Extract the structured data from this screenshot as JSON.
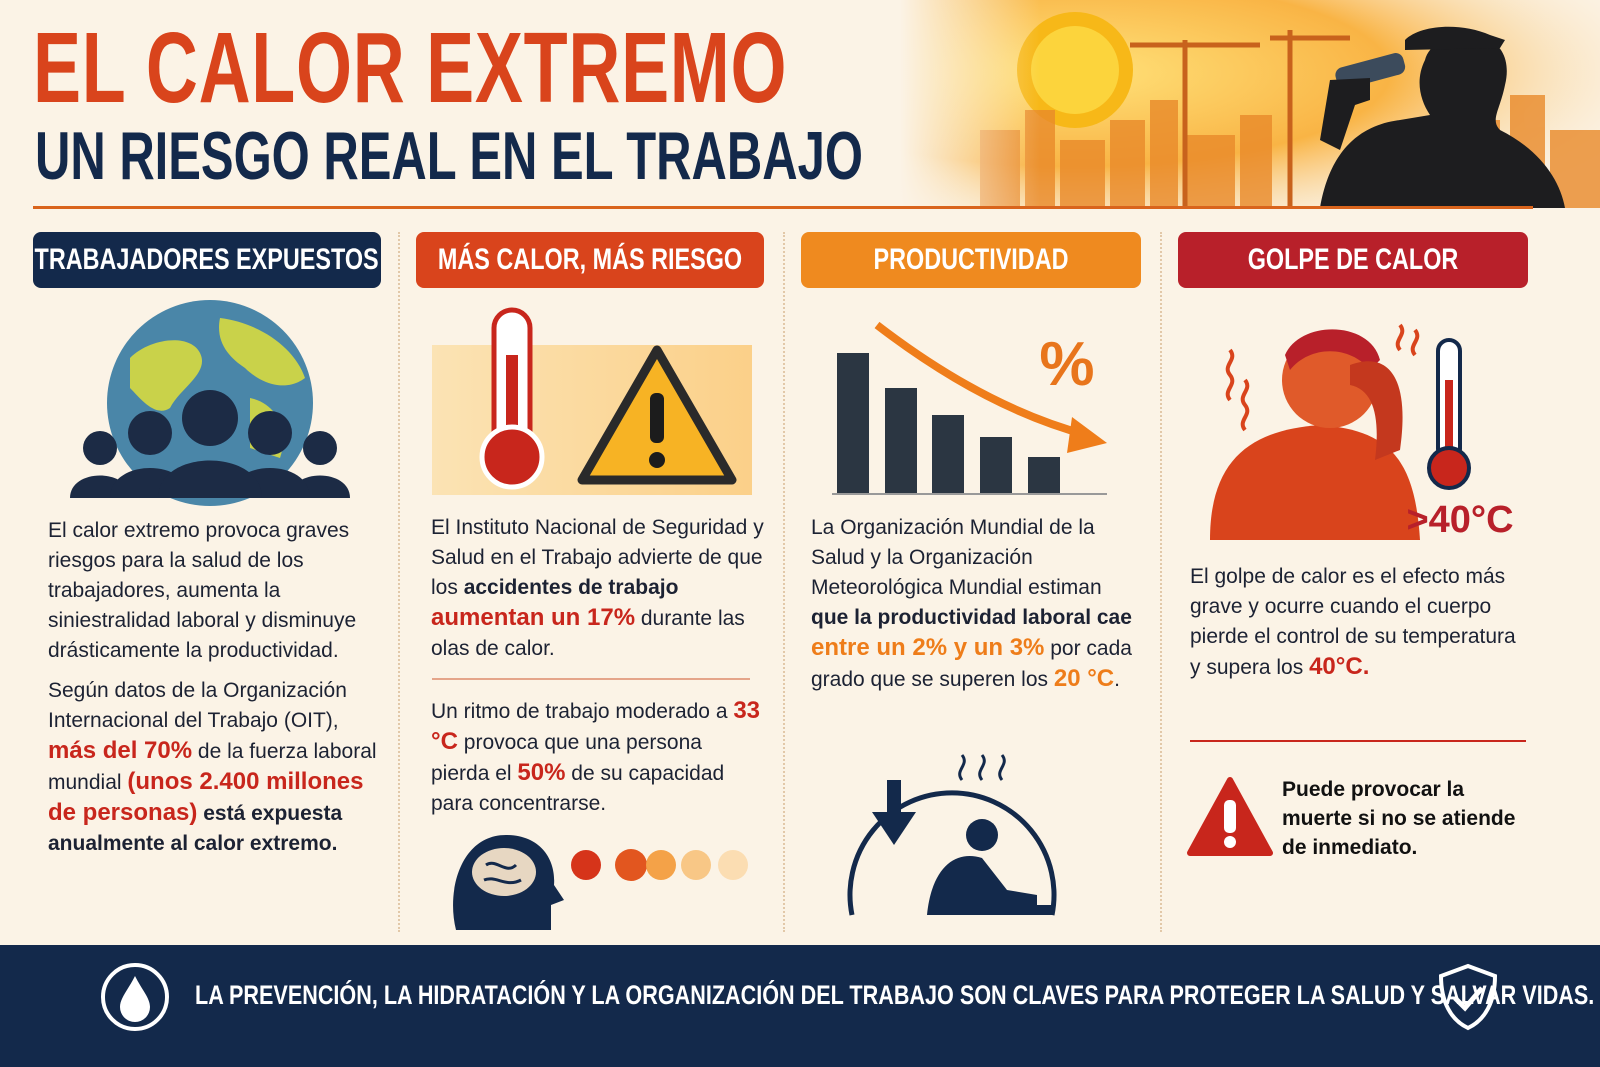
{
  "header": {
    "title": "EL CALOR EXTREMO",
    "subtitle": "UN RIESGO REAL EN EL TRABAJO"
  },
  "columns": [
    {
      "heading": "TRABAJADORES EXPUESTOS",
      "paragraphs": [
        [
          {
            "text": "El calor extremo provoca graves riesgos para la salud de los trabajadores, aumenta la siniestralidad laboral y disminuye drásticamente la productividad."
          }
        ],
        [
          {
            "text": "Según datos de la Organización Internacional del Trabajo (OIT), "
          },
          {
            "text": "más del 70%",
            "style": "red"
          },
          {
            "text": " de la fuerza laboral mundial "
          },
          {
            "text": "(unos 2.400 millones de personas)",
            "style": "red"
          },
          {
            "text": " está expuesta anualmente al calor extremo.",
            "style": "bold"
          }
        ]
      ]
    },
    {
      "heading": "MÁS CALOR, MÁS RIESGO",
      "paragraphs": [
        [
          {
            "text": "El Instituto Nacional de Seguridad y Salud en el Trabajo advierte de que los "
          },
          {
            "text": "accidentes de trabajo ",
            "style": "bold"
          },
          {
            "text": "aumentan un 17%",
            "style": "red"
          },
          {
            "text": " durante las olas de calor."
          }
        ],
        [
          {
            "text": "Un ritmo de trabajo moderado a "
          },
          {
            "text": "33 °C",
            "style": "red"
          },
          {
            "text": " provoca que una persona pierda el "
          },
          {
            "text": "50%",
            "style": "red"
          },
          {
            "text": " de su capacidad para concentrarse."
          }
        ]
      ]
    },
    {
      "heading": "PRODUCTIVIDAD",
      "icon_label": "%",
      "paragraphs": [
        [
          {
            "text": "La Organización Mundial de la Salud y la Organización Meteorológica Mundial estiman "
          },
          {
            "text": "que la productividad laboral cae ",
            "style": "bold"
          },
          {
            "text": "entre un 2% y un 3%",
            "style": "orange"
          },
          {
            "text": " por cada grado que se superen los "
          },
          {
            "text": "20 °C",
            "style": "orange"
          },
          {
            "text": "."
          }
        ]
      ]
    },
    {
      "heading": "GOLPE DE CALOR",
      "icon_label": ">40°C",
      "paragraphs": [
        [
          {
            "text": "El golpe de calor es el efecto más grave y ocurre cuando el cuerpo pierde el control de su temperatura y supera los "
          },
          {
            "text": "40°C.",
            "style": "red"
          }
        ]
      ],
      "warning": "Puede provocar la muerte si no se atiende de inmediato."
    }
  ],
  "footer": "LA PREVENCIÓN, LA HIDRATACIÓN Y LA ORGANIZACIÓN DEL TRABAJO SON CLAVES PARA PROTEGER LA SALUD Y SALVAR VIDAS."
}
